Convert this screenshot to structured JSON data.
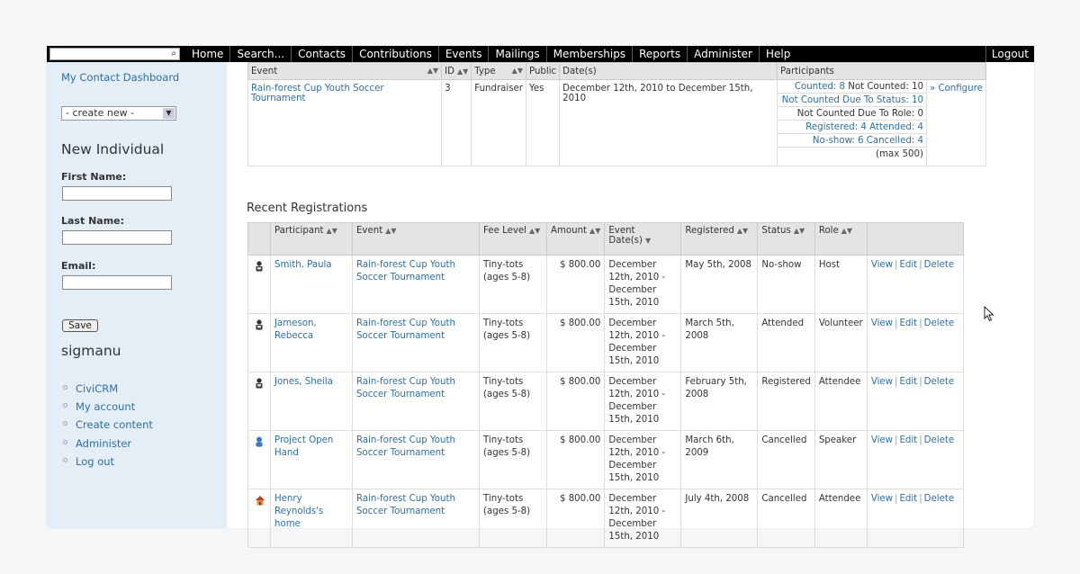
{
  "topbar": {
    "search_icon": "magnifier-icon",
    "menu": [
      "Home",
      "Search...",
      "Contacts",
      "Contributions",
      "Events",
      "Mailings",
      "Memberships",
      "Reports",
      "Administer",
      "Help"
    ],
    "logout": "Logout"
  },
  "sidebar": {
    "dashboard_link": "My Contact Dashboard",
    "create_select": "- create new -",
    "new_individual": "New Individual",
    "first_name_label": "First Name:",
    "last_name_label": "Last Name:",
    "email_label": "Email:",
    "save": "Save",
    "username": "sigmanu",
    "user_links": [
      "CiviCRM",
      "My account",
      "Create content",
      "Administer",
      "Log out"
    ]
  },
  "event_table": {
    "headers": {
      "event": "Event",
      "id": "ID",
      "type": "Type",
      "public": "Public",
      "dates": "Date(s)",
      "participants": "Participants"
    },
    "row": {
      "event": "Rain-forest Cup Youth Soccer Tournament",
      "id": "3",
      "type": "Fundraiser",
      "public": "Yes",
      "dates": "December 12th, 2010 to December 15th, 2010",
      "counted": "Counted: 8",
      "not_counted": "Not Counted: 10",
      "not_counted_status": "Not Counted Due To Status: 10",
      "not_counted_role": "Not Counted Due To Role: 0",
      "registered_attended": "Registered: 4 Attended: 4",
      "noshow_cancelled": "No-show: 6 Cancelled: 4",
      "max": "(max 500)",
      "configure": "» Configure"
    }
  },
  "recent": {
    "title": "Recent Registrations",
    "headers": {
      "participant": "Participant",
      "event": "Event",
      "fee": "Fee Level",
      "amount": "Amount",
      "event_dates": "Event Date(s)",
      "registered": "Registered",
      "status": "Status",
      "role": "Role"
    },
    "actions": {
      "view": "View",
      "edit": "Edit",
      "delete": "Delete"
    },
    "rows": [
      {
        "icon": "individual-icon",
        "participant": "Smith, Paula",
        "event": "Rain-forest Cup Youth Soccer Tournament",
        "fee": "Tiny-tots (ages 5-8)",
        "amount": "$ 800.00",
        "dates": "December 12th, 2010 - December 15th, 2010",
        "registered": "May 5th, 2008",
        "status": "No-show",
        "role": "Host"
      },
      {
        "icon": "individual-icon",
        "participant": "Jameson, Rebecca",
        "event": "Rain-forest Cup Youth Soccer Tournament",
        "fee": "Tiny-tots (ages 5-8)",
        "amount": "$ 800.00",
        "dates": "December 12th, 2010 - December 15th, 2010",
        "registered": "March 5th, 2008",
        "status": "Attended",
        "role": "Volunteer"
      },
      {
        "icon": "individual-icon",
        "participant": "Jones, Sheila",
        "event": "Rain-forest Cup Youth Soccer Tournament",
        "fee": "Tiny-tots (ages 5-8)",
        "amount": "$ 800.00",
        "dates": "December 12th, 2010 - December 15th, 2010",
        "registered": "February 5th, 2008",
        "status": "Registered",
        "role": "Attendee"
      },
      {
        "icon": "organization-icon",
        "participant": "Project Open Hand",
        "event": "Rain-forest Cup Youth Soccer Tournament",
        "fee": "Tiny-tots (ages 5-8)",
        "amount": "$ 800.00",
        "dates": "December 12th, 2010 - December 15th, 2010",
        "registered": "March 6th, 2009",
        "status": "Cancelled",
        "role": "Speaker"
      },
      {
        "icon": "household-icon",
        "participant": "Henry Reynolds's home",
        "event": "Rain-forest Cup Youth Soccer Tournament",
        "fee": "Tiny-tots (ages 5-8)",
        "amount": "$ 800.00",
        "dates": "December 12th, 2010 - December 15th, 2010",
        "registered": "July 4th, 2008",
        "status": "Cancelled",
        "role": "Attendee"
      }
    ]
  }
}
